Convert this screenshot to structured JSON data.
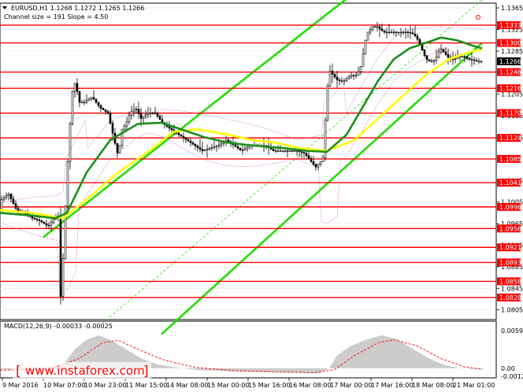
{
  "header": {
    "symbol_line": "EURUSD,H1  1.1268 1.1272 1.1265 1.1266",
    "channel_line": "Channel size = 191 Slope = 4.50"
  },
  "watermark": {
    "text": "www.instaforex.com"
  },
  "colors": {
    "level_line": "#ff0000",
    "price_label_bg": "#ff0000",
    "channel": "#22dd00",
    "ma_fast": "#1a8f1a",
    "ma_slow": "#ffff00",
    "bollinger": "#cc66cc",
    "candle": "#000000",
    "macd_hist": "#c0c0c0",
    "macd_signal": "#ff0000",
    "watermark": "#ff0000"
  },
  "chart_data": [
    {
      "type": "candlestick",
      "series": [
        {
          "name": "EURUSD,H1"
        }
      ],
      "ylim": [
        1.079,
        1.1368
      ],
      "last_price": "1.1266",
      "levels": [
        "1.1333",
        "1.1300",
        "1.1246",
        "1.1216",
        "1.1170",
        "1.1124",
        "1.1085",
        "1.1041",
        "1.0996",
        "1.0956",
        "1.0921",
        "1.0893",
        "1.0858",
        "1.0828"
      ],
      "scale_ticks": [
        "1.1365",
        "1.1325",
        "1.1285",
        "1.1205",
        "1.1165",
        "1.1125",
        "1.1045",
        "1.1005",
        "1.0965",
        "1.0925",
        "1.0885",
        "1.0845",
        "1.0805"
      ],
      "x_ticks": [
        "9 Mar 2016",
        "10 Mar 07:00",
        "10 Mar 23:00",
        "11 Mar 15:00",
        "14 Mar 08:00",
        "15 Mar 00:00",
        "15 Mar 16:00",
        "16 Mar 08:00",
        "17 Mar 00:00",
        "17 Mar 16:00",
        "18 Mar 08:00",
        "21 Mar 01:00"
      ],
      "price_path": [
        [
          0,
          1.0975
        ],
        [
          5,
          1.101
        ],
        [
          14,
          1.102
        ],
        [
          24,
          1.099
        ],
        [
          34,
          1.0985
        ],
        [
          44,
          1.0975
        ],
        [
          54,
          1.097
        ],
        [
          64,
          1.096
        ],
        [
          72,
          1.0975
        ],
        [
          78,
          1.098
        ],
        [
          80,
          1.083
        ],
        [
          83,
          1.09
        ],
        [
          87,
          1.103
        ],
        [
          91,
          1.113
        ],
        [
          95,
          1.121
        ],
        [
          99,
          1.123
        ],
        [
          103,
          1.119
        ],
        [
          110,
          1.119
        ],
        [
          120,
          1.12
        ],
        [
          130,
          1.118
        ],
        [
          140,
          1.117
        ],
        [
          148,
          1.112
        ],
        [
          153,
          1.109
        ],
        [
          158,
          1.114
        ],
        [
          163,
          1.115
        ],
        [
          168,
          1.117
        ],
        [
          175,
          1.118
        ],
        [
          182,
          1.116
        ],
        [
          190,
          1.117
        ],
        [
          200,
          1.117
        ],
        [
          210,
          1.115
        ],
        [
          220,
          1.114
        ],
        [
          230,
          1.113
        ],
        [
          240,
          1.112
        ],
        [
          250,
          1.111
        ],
        [
          260,
          1.11
        ],
        [
          270,
          1.1105
        ],
        [
          280,
          1.111
        ],
        [
          290,
          1.112
        ],
        [
          300,
          1.111
        ],
        [
          310,
          1.11
        ],
        [
          320,
          1.111
        ],
        [
          330,
          1.111
        ],
        [
          340,
          1.111
        ],
        [
          350,
          1.11
        ],
        [
          360,
          1.11
        ],
        [
          370,
          1.11
        ],
        [
          380,
          1.11
        ],
        [
          390,
          1.1095
        ],
        [
          398,
          1.108
        ],
        [
          404,
          1.107
        ],
        [
          410,
          1.108
        ],
        [
          414,
          1.109
        ],
        [
          417,
          1.119
        ],
        [
          421,
          1.125
        ],
        [
          426,
          1.124
        ],
        [
          432,
          1.123
        ],
        [
          440,
          1.123
        ],
        [
          448,
          1.124
        ],
        [
          456,
          1.124
        ],
        [
          462,
          1.126
        ],
        [
          466,
          1.13
        ],
        [
          470,
          1.132
        ],
        [
          476,
          1.133
        ],
        [
          482,
          1.133
        ],
        [
          490,
          1.132
        ],
        [
          500,
          1.132
        ],
        [
          510,
          1.132
        ],
        [
          520,
          1.132
        ],
        [
          526,
          1.1318
        ],
        [
          532,
          1.131
        ],
        [
          538,
          1.129
        ],
        [
          544,
          1.127
        ],
        [
          550,
          1.1265
        ],
        [
          556,
          1.127
        ],
        [
          562,
          1.129
        ],
        [
          568,
          1.128
        ],
        [
          574,
          1.127
        ],
        [
          580,
          1.127
        ],
        [
          586,
          1.1275
        ],
        [
          592,
          1.1275
        ],
        [
          598,
          1.127
        ],
        [
          604,
          1.1268
        ],
        [
          608,
          1.1266
        ]
      ],
      "ma_fast_path": [
        [
          0,
          1.0985
        ],
        [
          40,
          1.098
        ],
        [
          70,
          1.0975
        ],
        [
          85,
          1.0985
        ],
        [
          110,
          1.106
        ],
        [
          140,
          1.112
        ],
        [
          175,
          1.115
        ],
        [
          205,
          1.1152
        ],
        [
          230,
          1.114
        ],
        [
          260,
          1.1125
        ],
        [
          290,
          1.1115
        ],
        [
          320,
          1.111
        ],
        [
          360,
          1.1105
        ],
        [
          390,
          1.11
        ],
        [
          415,
          1.1098
        ],
        [
          440,
          1.113
        ],
        [
          460,
          1.118
        ],
        [
          480,
          1.123
        ],
        [
          500,
          1.127
        ],
        [
          520,
          1.129
        ],
        [
          540,
          1.13
        ],
        [
          560,
          1.131
        ],
        [
          580,
          1.1305
        ],
        [
          600,
          1.1295
        ],
        [
          612,
          1.129
        ]
      ],
      "ma_slow_path": [
        [
          0,
          1.099
        ],
        [
          40,
          1.0985
        ],
        [
          80,
          1.0975
        ],
        [
          110,
          1.101
        ],
        [
          150,
          1.106
        ],
        [
          190,
          1.11
        ],
        [
          220,
          1.1135
        ],
        [
          250,
          1.114
        ],
        [
          290,
          1.113
        ],
        [
          320,
          1.112
        ],
        [
          350,
          1.1115
        ],
        [
          380,
          1.1105
        ],
        [
          415,
          1.11
        ],
        [
          450,
          1.112
        ],
        [
          480,
          1.116
        ],
        [
          510,
          1.12
        ],
        [
          540,
          1.124
        ],
        [
          570,
          1.127
        ],
        [
          600,
          1.1285
        ],
        [
          612,
          1.1287
        ]
      ],
      "channel_lines": [
        {
          "role": "upper",
          "from": [
            55,
            1.094
          ],
          "to": [
            560,
            1.152
          ]
        },
        {
          "role": "lower",
          "from": [
            205,
            1.076
          ],
          "to": [
            612,
            1.13
          ]
        }
      ]
    },
    {
      "type": "bar",
      "title": "MACD(12,26,9) -0.00033 -0.00025",
      "ylim": [
        -0.00127,
        0.00593
      ],
      "scale_ticks": [
        "0.00593",
        "0.00",
        "-0.00127"
      ],
      "hist_path": [
        [
          0,
          -0.0002
        ],
        [
          40,
          -0.0003
        ],
        [
          80,
          0.0005
        ],
        [
          95,
          0.003
        ],
        [
          110,
          0.0045
        ],
        [
          125,
          0.0052
        ],
        [
          140,
          0.0045
        ],
        [
          160,
          0.003
        ],
        [
          180,
          0.0015
        ],
        [
          200,
          0.0006
        ],
        [
          220,
          0.0002
        ],
        [
          250,
          -0.0003
        ],
        [
          290,
          -0.0005
        ],
        [
          330,
          -0.0006
        ],
        [
          370,
          -0.0007
        ],
        [
          405,
          -0.0008
        ],
        [
          418,
          0.0
        ],
        [
          428,
          0.002
        ],
        [
          445,
          0.0035
        ],
        [
          465,
          0.0045
        ],
        [
          485,
          0.0052
        ],
        [
          505,
          0.0045
        ],
        [
          525,
          0.003
        ],
        [
          545,
          0.0015
        ],
        [
          565,
          0.0005
        ],
        [
          585,
          0.0
        ],
        [
          610,
          -0.0002
        ]
      ],
      "signal_path": [
        [
          0,
          -0.0003
        ],
        [
          60,
          -0.0002
        ],
        [
          100,
          0.0015
        ],
        [
          130,
          0.004
        ],
        [
          150,
          0.0044
        ],
        [
          175,
          0.003
        ],
        [
          210,
          0.0012
        ],
        [
          250,
          0.0001
        ],
        [
          300,
          -0.0004
        ],
        [
          360,
          -0.0006
        ],
        [
          400,
          -0.0007
        ],
        [
          425,
          -0.0002
        ],
        [
          450,
          0.002
        ],
        [
          480,
          0.004
        ],
        [
          500,
          0.0045
        ],
        [
          530,
          0.0035
        ],
        [
          560,
          0.0015
        ],
        [
          590,
          0.0002
        ],
        [
          610,
          -0.0001
        ]
      ]
    }
  ]
}
